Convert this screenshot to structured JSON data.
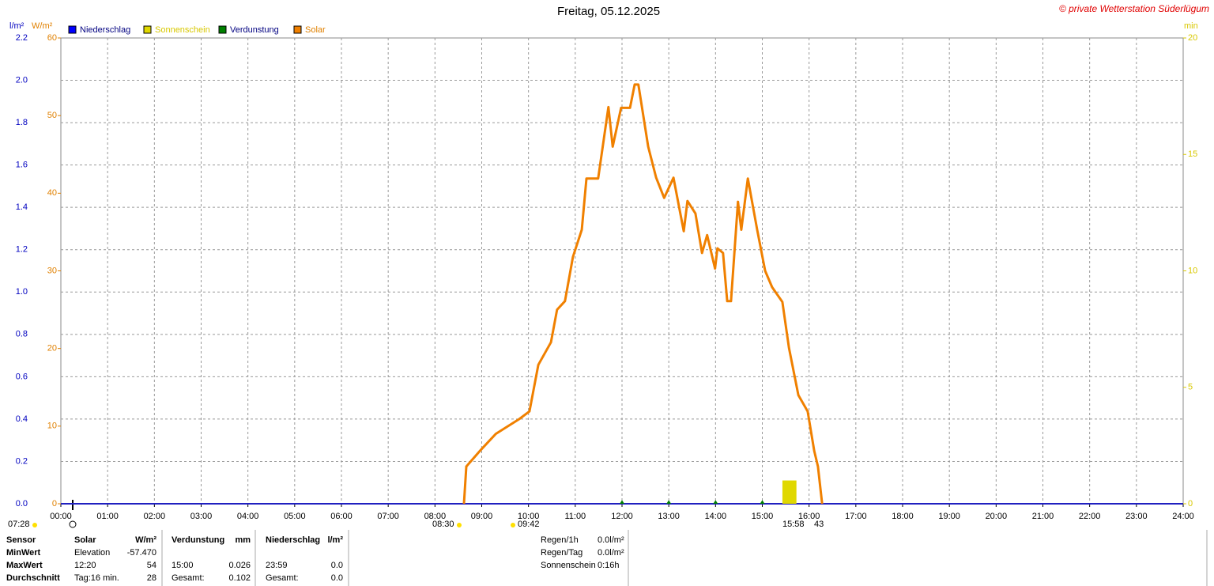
{
  "chart_data": {
    "type": "line",
    "title": "Freitag, 05.12.2025",
    "credit": "© private Wetterstation Süderlügum",
    "ylabel": "l/m²",
    "y2label": "W/m²",
    "y3label": "min",
    "xlim": [
      0,
      24
    ],
    "xticks": [
      {
        "value": 0,
        "label": "00:00"
      },
      {
        "value": 1,
        "label": "01:00"
      },
      {
        "value": 2,
        "label": "02:00"
      },
      {
        "value": 3,
        "label": "03:00"
      },
      {
        "value": 4,
        "label": "04:00"
      },
      {
        "value": 5,
        "label": "05:00"
      },
      {
        "value": 6,
        "label": "06:00"
      },
      {
        "value": 7,
        "label": "07:00"
      },
      {
        "value": 8,
        "label": "08:00"
      },
      {
        "value": 9,
        "label": "09:00"
      },
      {
        "value": 10,
        "label": "10:00"
      },
      {
        "value": 11,
        "label": "11:00"
      },
      {
        "value": 12,
        "label": "12:00"
      },
      {
        "value": 13,
        "label": "13:00"
      },
      {
        "value": 14,
        "label": "14:00"
      },
      {
        "value": 15,
        "label": "15:00"
      },
      {
        "value": 16,
        "label": "16:00"
      },
      {
        "value": 17,
        "label": "17:00"
      },
      {
        "value": 18,
        "label": "18:00"
      },
      {
        "value": 19,
        "label": "19:00"
      },
      {
        "value": 20,
        "label": "20:00"
      },
      {
        "value": 21,
        "label": "21:00"
      },
      {
        "value": 22,
        "label": "22:00"
      },
      {
        "value": 23,
        "label": "23:00"
      },
      {
        "value": 24,
        "label": "24:00"
      }
    ],
    "ylim": [
      0,
      2.2
    ],
    "yticks": [
      {
        "value": 0,
        "label": "0.0"
      },
      {
        "value": 0.2,
        "label": "0.2"
      },
      {
        "value": 0.4,
        "label": "0.4"
      },
      {
        "value": 0.6,
        "label": "0.6"
      },
      {
        "value": 0.8,
        "label": "0.8"
      },
      {
        "value": 1,
        "label": "1.0"
      },
      {
        "value": 1.2,
        "label": "1.2"
      },
      {
        "value": 1.4,
        "label": "1.4"
      },
      {
        "value": 1.6,
        "label": "1.6"
      },
      {
        "value": 1.8,
        "label": "1.8"
      },
      {
        "value": 2,
        "label": "2.0"
      },
      {
        "value": 2.2,
        "label": "2.2"
      }
    ],
    "y2lim": [
      0,
      60
    ],
    "y2ticks": [
      0,
      10,
      20,
      30,
      40,
      50,
      60
    ],
    "y3lim": [
      0,
      20
    ],
    "y3ticks": [
      0,
      5,
      10,
      15,
      20
    ],
    "grid": true,
    "series": [
      {
        "name": "Niederschlag",
        "color": "#0000ff",
        "axis": "y",
        "x": [],
        "values": []
      },
      {
        "name": "Sonnenschein",
        "color": "#e0d800",
        "axis": "y3",
        "bins": [
          15.43,
          15.73
        ],
        "values": [
          1.0
        ]
      },
      {
        "name": "Verdunstung",
        "color": "#008000",
        "axis": "y",
        "x": [
          12,
          13,
          14,
          15
        ],
        "values": [
          0.01,
          0.01,
          0.01,
          0.01
        ]
      },
      {
        "name": "Solar",
        "color": "#f08000",
        "axis": "y2",
        "x": [
          8.62,
          8.67,
          8.99,
          9.3,
          9.8,
          10.02,
          10.21,
          10.48,
          10.61,
          10.78,
          10.95,
          11.14,
          11.24,
          11.49,
          11.71,
          11.8,
          11.98,
          12.17,
          12.27,
          12.35,
          12.56,
          12.73,
          12.9,
          13.1,
          13.32,
          13.4,
          13.57,
          13.71,
          13.82,
          13.99,
          14.04,
          14.16,
          14.25,
          14.33,
          14.48,
          14.55,
          14.69,
          14.89,
          15.06,
          15.21,
          15.43,
          15.57,
          15.77,
          15.97,
          16.11,
          16.19,
          16.28
        ],
        "values": [
          0,
          4.8,
          7.0,
          9.0,
          10.9,
          11.9,
          17.9,
          20.8,
          25.0,
          26.1,
          31.8,
          35.3,
          41.9,
          41.9,
          51.1,
          46.0,
          51.0,
          51.0,
          54.0,
          54.0,
          46.0,
          42.0,
          39.4,
          42.0,
          35.1,
          39.0,
          37.4,
          32.3,
          34.6,
          30.3,
          32.9,
          32.3,
          26.1,
          26.1,
          38.9,
          35.3,
          41.9,
          35.3,
          30.0,
          27.9,
          26.0,
          20.1,
          14.0,
          11.9,
          6.8,
          4.8,
          0
        ]
      }
    ],
    "annotations": [
      "07:28",
      "08:30",
      "09:42",
      "15:58",
      "43"
    ]
  },
  "table": {
    "rows": [
      [
        "Sensor",
        "Solar",
        "W/m²",
        "Verdunstung",
        "mm",
        "Niederschlag",
        "l/m²"
      ],
      [
        "MinWert",
        "Elevation",
        "-57.470",
        null,
        null,
        null,
        null
      ],
      [
        "MaxWert",
        "12:20",
        "54",
        "15:00",
        "0.026",
        "23:59",
        "0.0"
      ],
      [
        "Durchschnitt",
        "Tag:16 min.",
        "28",
        "Gesamt:",
        "0.102",
        "Gesamt:",
        "0.0"
      ]
    ],
    "totals": [
      [
        "Regen/1h",
        "0.0l/m²"
      ],
      [
        "Regen/Tag",
        "0.0l/m²"
      ],
      [
        "Sonnenschein",
        "0:16h"
      ]
    ]
  }
}
